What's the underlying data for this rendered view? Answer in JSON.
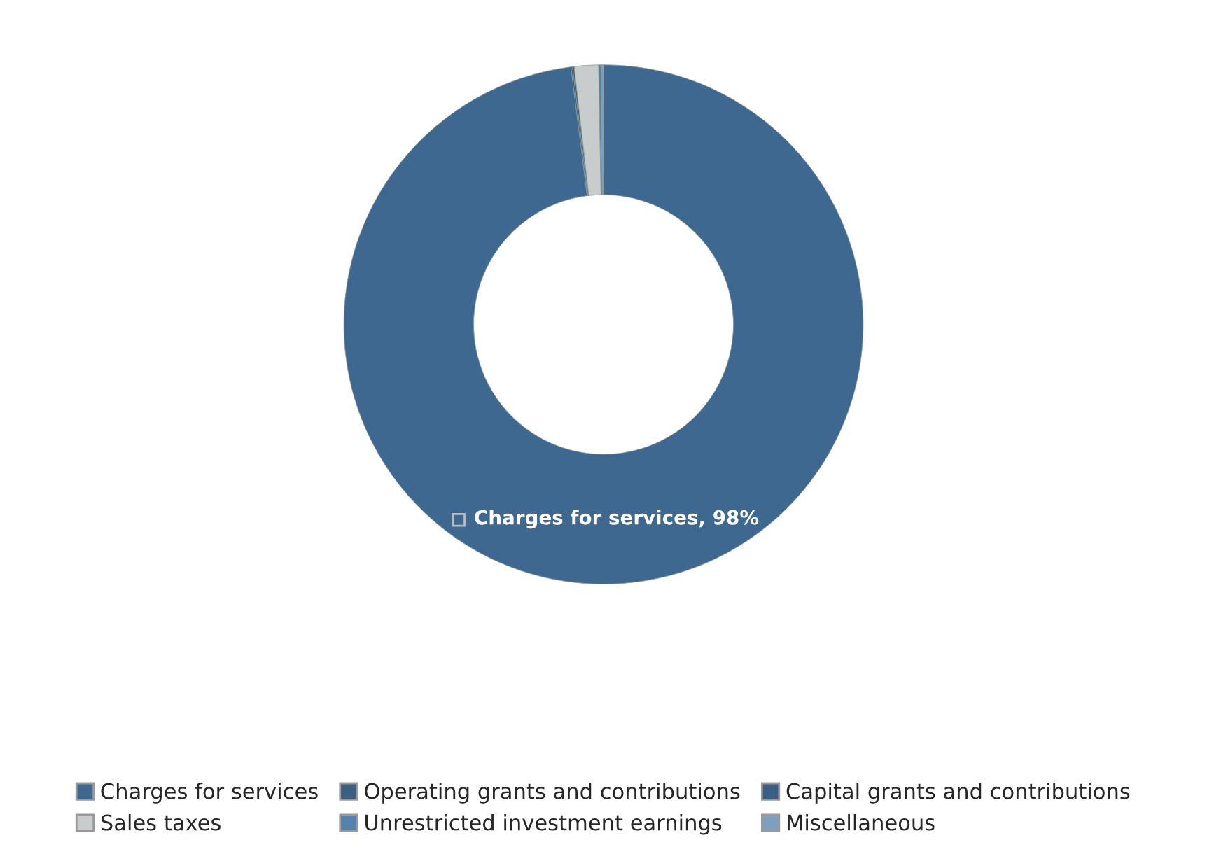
{
  "chart_data": {
    "type": "donut",
    "categories": [
      "Charges for services",
      "Operating grants and contributions",
      "Capital grants and contributions",
      "Sales taxes",
      "Unrestricted investment earnings",
      "Miscellaneous"
    ],
    "values": [
      98,
      0.1,
      0.1,
      1.5,
      0.15,
      0.15
    ],
    "colors": [
      "#3e6890",
      "#3d5f7f",
      "#3b5f82",
      "#c8cccc",
      "#5582ad",
      "#7f9fbf"
    ],
    "value_labels": [
      "Charges for services, 98%",
      null,
      null,
      null,
      null,
      null
    ],
    "legend": "bottom"
  }
}
